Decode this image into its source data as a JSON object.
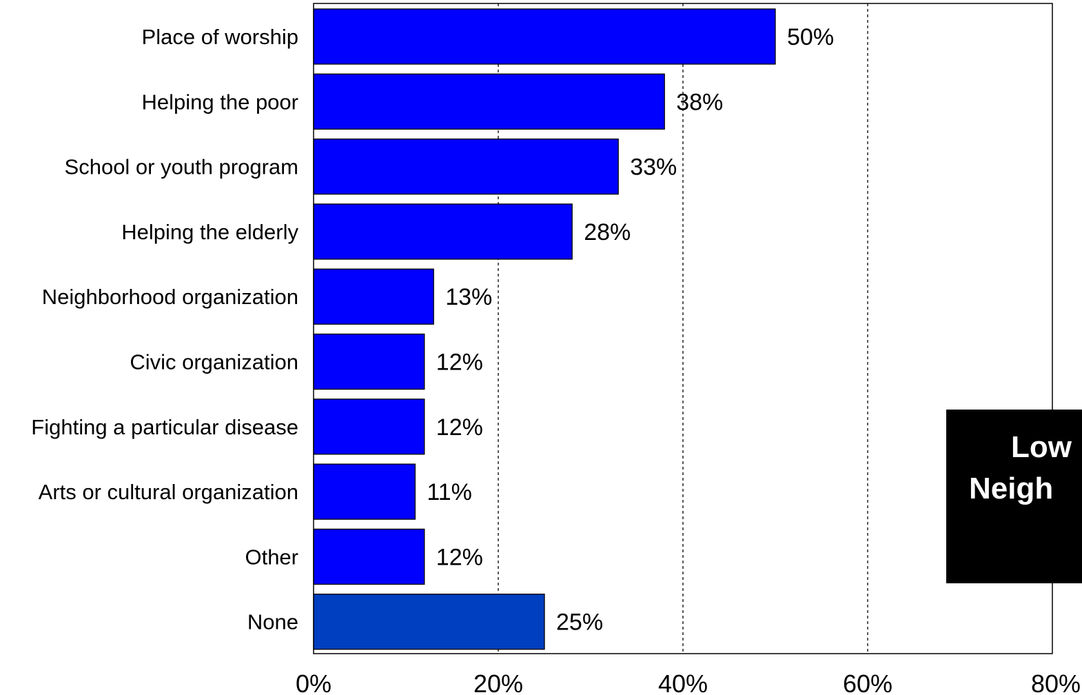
{
  "chart_data": {
    "type": "bar",
    "orientation": "horizontal",
    "categories": [
      "Place of worship",
      "Helping the poor",
      "School or youth program",
      "Helping the elderly",
      "Neighborhood organization",
      "Civic organization",
      "Fighting a particular disease",
      "Arts or cultural organization",
      "Other",
      "None"
    ],
    "values": [
      50,
      38,
      33,
      28,
      13,
      12,
      12,
      11,
      12,
      25
    ],
    "value_labels": [
      "50%",
      "38%",
      "33%",
      "28%",
      "13%",
      "12%",
      "12%",
      "11%",
      "12%",
      "25%"
    ],
    "bar_colors": [
      "#0000ff",
      "#0000ff",
      "#0000ff",
      "#0000ff",
      "#0000ff",
      "#0000ff",
      "#0000ff",
      "#0000ff",
      "#0000ff",
      "#003fbf"
    ],
    "xlim": [
      0,
      80
    ],
    "x_ticks": [
      0,
      20,
      40,
      60,
      80
    ],
    "x_tick_labels": [
      "0%",
      "20%",
      "40%",
      "60%",
      "80%"
    ],
    "grid": "vertical dashed",
    "title": "",
    "xlabel": "",
    "ylabel": ""
  },
  "callout": {
    "line1": "Low",
    "line2": "Neigh"
  }
}
